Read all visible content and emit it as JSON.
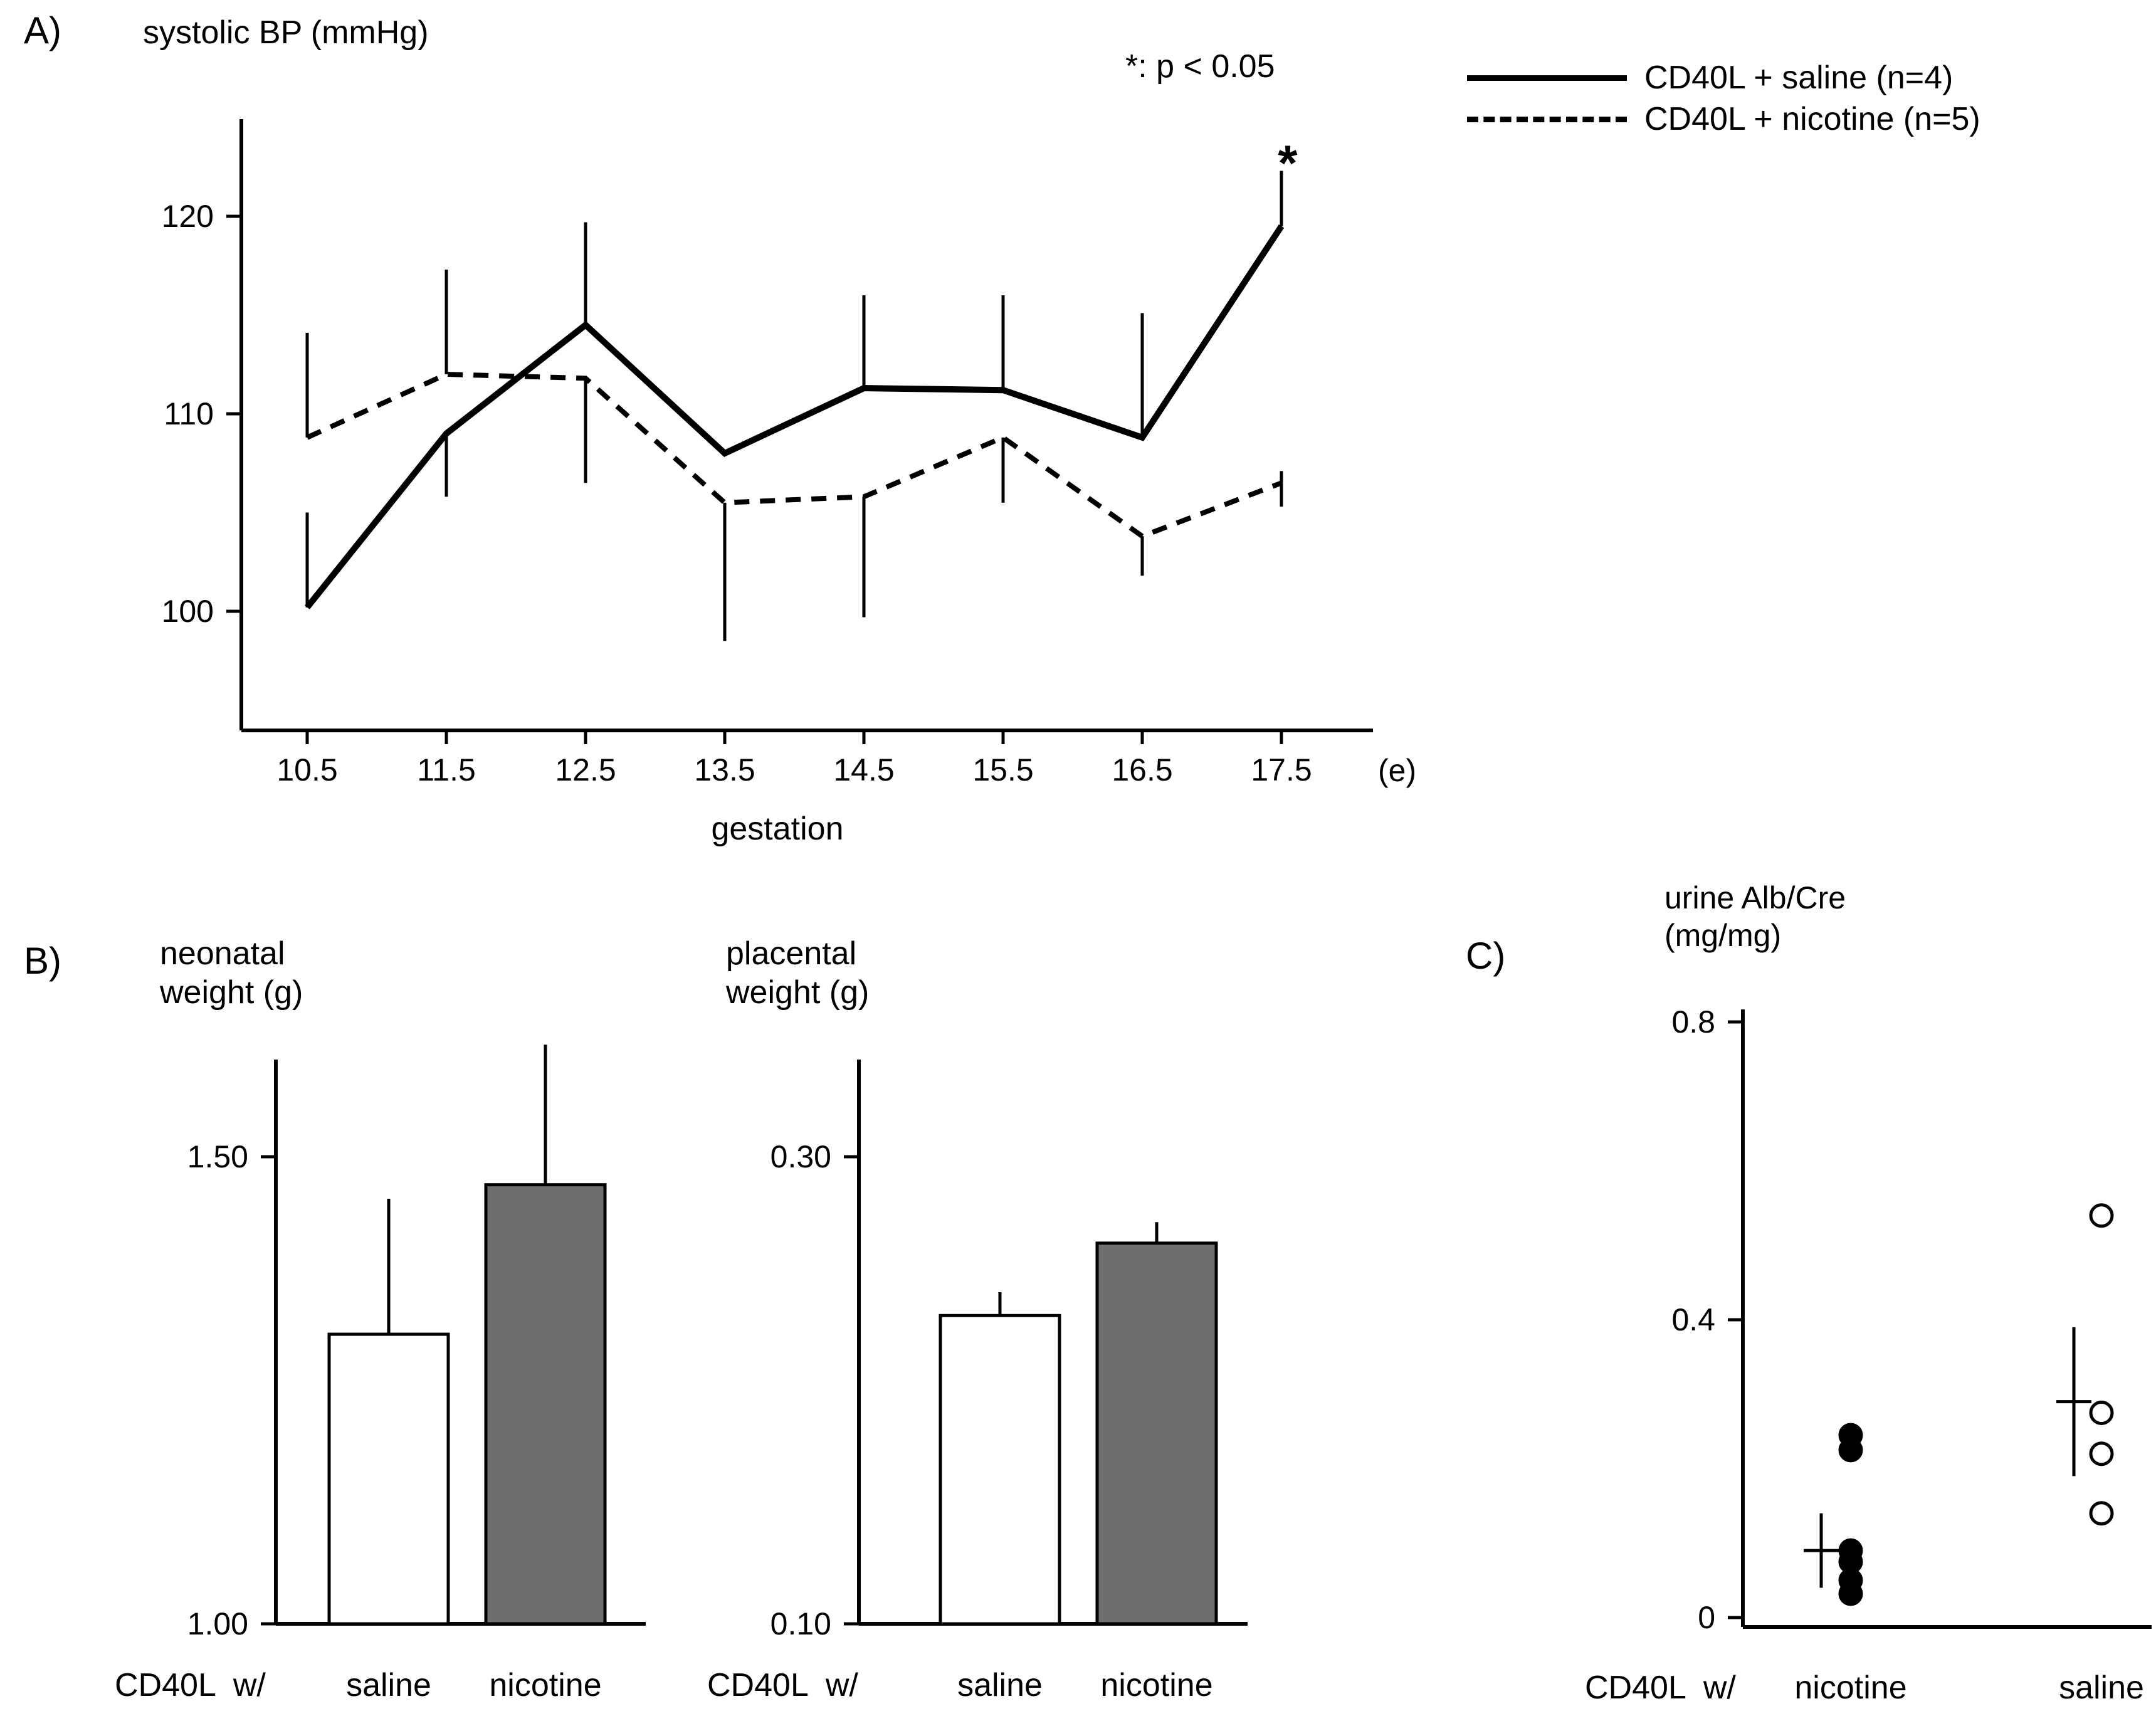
{
  "panels": {
    "a": {
      "label": "A)"
    },
    "b": {
      "label": "B)"
    },
    "c": {
      "label": "C)"
    }
  },
  "chart_data": [
    {
      "id": "systolic-bp",
      "type": "line",
      "title": "systolic BP (mmHg)",
      "annotation": "*: p < 0.05",
      "xlabel": "gestation",
      "x_axis_unit": "(e)",
      "x": [
        "10.5",
        "11.5",
        "12.5",
        "13.5",
        "14.5",
        "15.5",
        "16.5",
        "17.5"
      ],
      "yticks": [
        100,
        110,
        120
      ],
      "ytick_labels": [
        "100",
        "110",
        "120"
      ],
      "ylim": [
        95.5,
        124.9
      ],
      "legend_position": "top-right",
      "series": [
        {
          "name": "CD40L + saline (n=4)",
          "line_style": "solid",
          "values": [
            100.2,
            109,
            114.5,
            108,
            111.3,
            111.2,
            108.8,
            119.5
          ],
          "err_up": [
            4.8,
            0,
            5.2,
            0,
            4.7,
            4.8,
            6.3,
            2.8
          ],
          "err_down": [
            0,
            3.2,
            0,
            0,
            0,
            0,
            0,
            0
          ],
          "significance_marker": "*"
        },
        {
          "name": "CD40L + nicotine (n=5)",
          "line_style": "dashed",
          "values": [
            108.8,
            112,
            111.8,
            105.5,
            105.8,
            108.8,
            103.8,
            106.5
          ],
          "err_up": [
            5.3,
            5.3,
            0,
            0,
            0,
            0,
            0,
            0.6
          ],
          "err_down": [
            0,
            0,
            5.3,
            7,
            6.1,
            3.3,
            2,
            1.2
          ]
        }
      ]
    },
    {
      "id": "neonatal-weight",
      "type": "bar",
      "title_line1": "neonatal",
      "title_line2": "weight (g)",
      "group_label": "CD40L  w/",
      "categories": [
        "saline",
        "nicotine"
      ],
      "values": [
        1.31,
        1.47
      ],
      "err_up": [
        0.145,
        0.15
      ],
      "yticks": [
        1.0,
        1.5
      ],
      "ytick_labels": [
        "1.00",
        "1.50"
      ],
      "ylim": [
        1.0,
        1.6
      ],
      "bar_fills": [
        "#ffffff",
        "#6e6e6e"
      ]
    },
    {
      "id": "placental-weight",
      "type": "bar",
      "title_line1": "placental",
      "title_line2": "weight (g)",
      "group_label": "CD40L  w/",
      "categories": [
        "saline",
        "nicotine"
      ],
      "values": [
        0.232,
        0.263
      ],
      "err_up": [
        0.01,
        0.009
      ],
      "yticks": [
        0.1,
        0.3
      ],
      "ytick_labels": [
        "0.10",
        "0.30"
      ],
      "ylim": [
        0.1,
        0.34
      ],
      "bar_fills": [
        "#ffffff",
        "#6e6e6e"
      ]
    },
    {
      "id": "urine-alb-cre",
      "type": "scatter",
      "title_line1": "urine Alb/Cre",
      "title_line2": "(mg/mg)",
      "group_label": "CD40L  w/",
      "yticks": [
        0,
        0.4,
        0.8
      ],
      "ytick_labels": [
        "0",
        "0.4",
        "0.8"
      ],
      "ylim": [
        0,
        0.84
      ],
      "groups": [
        {
          "name": "nicotine",
          "marker": "filled",
          "points": [
            0.245,
            0.225,
            0.09,
            0.075,
            0.05,
            0.032
          ],
          "mean": 0.09,
          "err_low": 0.04,
          "err_high": 0.14
        },
        {
          "name": "saline",
          "marker": "open",
          "points": [
            0.54,
            0.275,
            0.22,
            0.14
          ],
          "mean": 0.29,
          "err_low": 0.19,
          "err_high": 0.39
        }
      ]
    }
  ],
  "colors": {
    "ink": "#000000",
    "bar_gray": "#6e6e6e",
    "background": "#ffffff"
  }
}
